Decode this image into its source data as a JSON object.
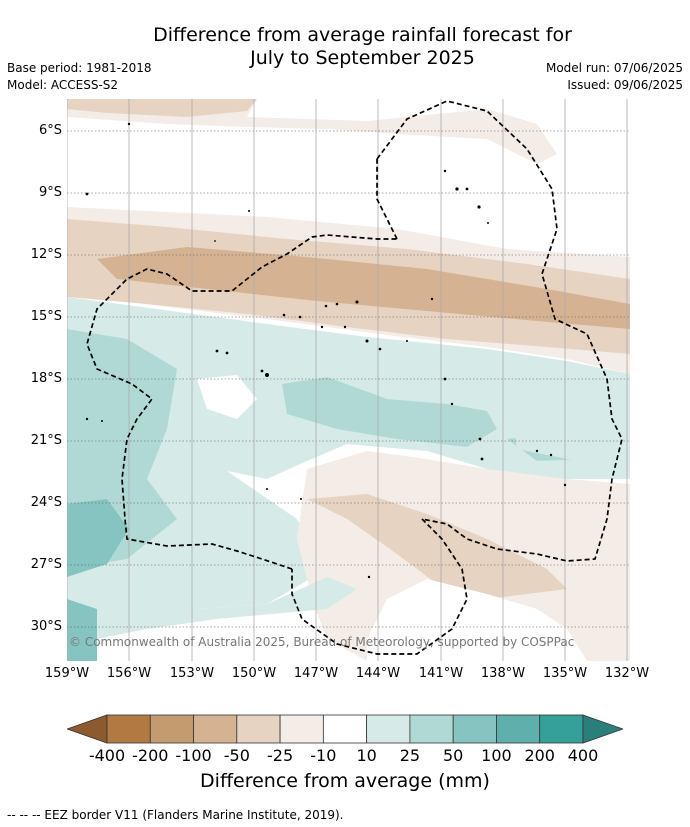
{
  "title": {
    "line1": "Difference from average rainfall forecast for",
    "line2": "July to September 2025"
  },
  "meta": {
    "base_period": "Base period: 1981-2018",
    "model": "Model: ACCESS-S2",
    "model_run": "Model run: 07/06/2025",
    "issued": "Issued: 09/06/2025"
  },
  "lat_labels": [
    "6°S",
    "9°S",
    "12°S",
    "15°S",
    "18°S",
    "21°S",
    "24°S",
    "27°S",
    "30°S"
  ],
  "lon_labels": [
    "159°W",
    "156°W",
    "153°W",
    "150°W",
    "147°W",
    "144°W",
    "141°W",
    "138°W",
    "135°W",
    "132°W"
  ],
  "copyright": "© Commonwealth of Australia 2025, Bureau of Meteorology, supported by COSPPac",
  "colorbar": {
    "labels": [
      "-400",
      "-200",
      "-100",
      "-50",
      "-25",
      "-10",
      "10",
      "25",
      "50",
      "100",
      "200",
      "400"
    ],
    "colors": [
      "#8c5a2e",
      "#b07a42",
      "#c49a6f",
      "#d5b392",
      "#e6d3c2",
      "#f4ece7",
      "#ffffff",
      "#d6ebe8",
      "#b0d9d6",
      "#86c4c1",
      "#5fb0ac",
      "#35a09a",
      "#2a7f7a"
    ],
    "title": "Difference from average (mm)"
  },
  "legend_note": "-- -- -- EEZ border V11 (Flanders Marine Institute, 2019)."
}
